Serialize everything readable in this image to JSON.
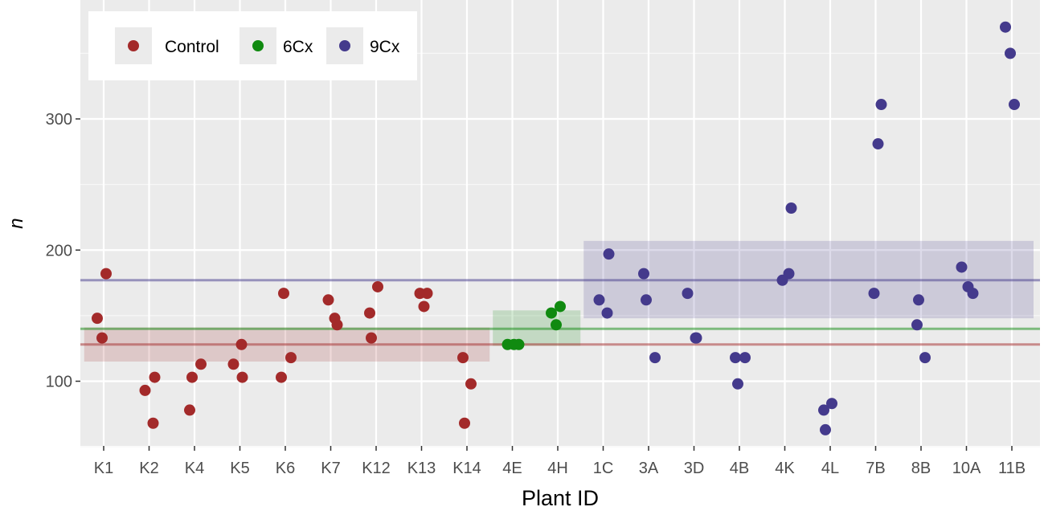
{
  "chart_data": {
    "type": "scatter",
    "xlabel": "Plant ID",
    "ylabel": "n",
    "categories": [
      "K1",
      "K2",
      "K4",
      "K5",
      "K6",
      "K7",
      "K12",
      "K13",
      "K14",
      "4E",
      "4H",
      "1C",
      "3A",
      "3D",
      "4B",
      "4K",
      "4L",
      "7B",
      "8B",
      "10A",
      "11B"
    ],
    "ylim": [
      50,
      380
    ],
    "yticks": [
      100,
      200,
      300
    ],
    "grid": true,
    "legend_position": "top-left",
    "colors": {
      "Control": "#A32A2A",
      "6Cx": "#108A10",
      "9Cx": "#443A8C"
    },
    "series": [
      {
        "name": "Control",
        "points": [
          {
            "x": "K1",
            "y": 148
          },
          {
            "x": "K1",
            "y": 182
          },
          {
            "x": "K1",
            "y": 133
          },
          {
            "x": "K2",
            "y": 103
          },
          {
            "x": "K2",
            "y": 93
          },
          {
            "x": "K2",
            "y": 68
          },
          {
            "x": "K4",
            "y": 103
          },
          {
            "x": "K4",
            "y": 113
          },
          {
            "x": "K4",
            "y": 78
          },
          {
            "x": "K5",
            "y": 128
          },
          {
            "x": "K5",
            "y": 113
          },
          {
            "x": "K5",
            "y": 103
          },
          {
            "x": "K6",
            "y": 167
          },
          {
            "x": "K6",
            "y": 118
          },
          {
            "x": "K6",
            "y": 103
          },
          {
            "x": "K7",
            "y": 148
          },
          {
            "x": "K7",
            "y": 162
          },
          {
            "x": "K7",
            "y": 143
          },
          {
            "x": "K12",
            "y": 133
          },
          {
            "x": "K12",
            "y": 172
          },
          {
            "x": "K12",
            "y": 152
          },
          {
            "x": "K13",
            "y": 157
          },
          {
            "x": "K13",
            "y": 167
          },
          {
            "x": "K13",
            "y": 167
          },
          {
            "x": "K14",
            "y": 118
          },
          {
            "x": "K14",
            "y": 98
          },
          {
            "x": "K14",
            "y": 68
          }
        ],
        "mean": 128,
        "band": [
          115,
          141
        ]
      },
      {
        "name": "6Cx",
        "points": [
          {
            "x": "4E",
            "y": 128
          },
          {
            "x": "4E",
            "y": 128
          },
          {
            "x": "4E",
            "y": 128
          },
          {
            "x": "4H",
            "y": 152
          },
          {
            "x": "4H",
            "y": 157
          },
          {
            "x": "4H",
            "y": 143
          }
        ],
        "mean": 140,
        "band": [
          127,
          154
        ]
      },
      {
        "name": "9Cx",
        "points": [
          {
            "x": "1C",
            "y": 197
          },
          {
            "x": "1C",
            "y": 162
          },
          {
            "x": "1C",
            "y": 152
          },
          {
            "x": "3A",
            "y": 162
          },
          {
            "x": "3A",
            "y": 118
          },
          {
            "x": "3A",
            "y": 182
          },
          {
            "x": "3D",
            "y": 133
          },
          {
            "x": "3D",
            "y": 167
          },
          {
            "x": "3D",
            "y": 133
          },
          {
            "x": "4B",
            "y": 98
          },
          {
            "x": "4B",
            "y": 118
          },
          {
            "x": "4B",
            "y": 118
          },
          {
            "x": "4K",
            "y": 182
          },
          {
            "x": "4K",
            "y": 177
          },
          {
            "x": "4K",
            "y": 232
          },
          {
            "x": "4L",
            "y": 63
          },
          {
            "x": "4L",
            "y": 83
          },
          {
            "x": "4L",
            "y": 78
          },
          {
            "x": "7B",
            "y": 281
          },
          {
            "x": "7B",
            "y": 167
          },
          {
            "x": "7B",
            "y": 311
          },
          {
            "x": "8B",
            "y": 143
          },
          {
            "x": "8B",
            "y": 118
          },
          {
            "x": "8B",
            "y": 162
          },
          {
            "x": "10A",
            "y": 167
          },
          {
            "x": "10A",
            "y": 187
          },
          {
            "x": "10A",
            "y": 172
          },
          {
            "x": "11B",
            "y": 370
          },
          {
            "x": "11B",
            "y": 311
          },
          {
            "x": "11B",
            "y": 350
          }
        ],
        "mean": 177,
        "band": [
          148,
          207
        ]
      }
    ]
  }
}
